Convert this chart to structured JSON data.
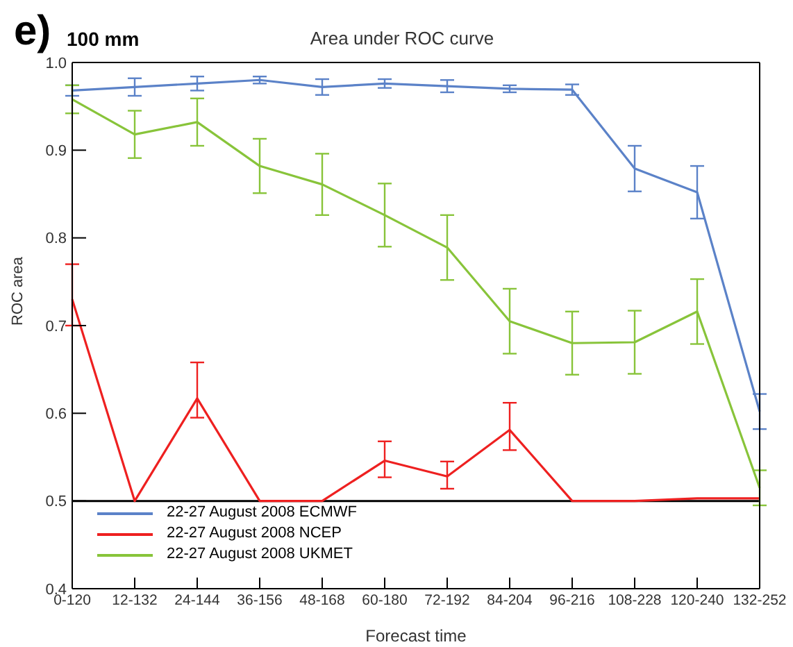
{
  "chart_data": {
    "type": "line",
    "title": "Area under ROC curve",
    "subtitle": "100 mm",
    "annotations": [
      "e)"
    ],
    "xlabel": "Forecast time",
    "ylabel": "ROC area",
    "categories": [
      "0-120",
      "12-132",
      "24-144",
      "36-156",
      "48-168",
      "60-180",
      "72-192",
      "84-204",
      "96-216",
      "108-228",
      "120-240",
      "132-252"
    ],
    "series": [
      {
        "name": "22-27 August 2008 ECMWF",
        "color": "#5b82c8",
        "values": [
          0.968,
          0.972,
          0.976,
          0.98,
          0.972,
          0.976,
          0.973,
          0.97,
          0.969,
          0.879,
          0.852,
          0.602
        ],
        "errors": [
          0.006,
          0.01,
          0.008,
          0.004,
          0.009,
          0.005,
          0.007,
          0.004,
          0.006,
          0.026,
          0.03,
          0.02
        ]
      },
      {
        "name": "22-27 August 2008 NCEP",
        "color": "#ee2020",
        "values": [
          0.73,
          0.5,
          0.617,
          0.5,
          0.5,
          0.546,
          0.528,
          0.581,
          0.5,
          0.5,
          0.503,
          0.503
        ],
        "errors": [
          [
            0.7,
            0.77
          ],
          null,
          [
            0.595,
            0.658
          ],
          null,
          null,
          [
            0.527,
            0.568
          ],
          [
            0.514,
            0.545
          ],
          [
            0.558,
            0.612
          ],
          null,
          null,
          null,
          null
        ]
      },
      {
        "name": "22-27 August 2008 UKMET",
        "color": "#88c43a",
        "values": [
          0.958,
          0.918,
          0.932,
          0.882,
          0.861,
          0.826,
          0.789,
          0.705,
          0.68,
          0.681,
          0.716,
          0.515
        ],
        "errors": [
          0.016,
          0.027,
          0.027,
          0.031,
          0.035,
          0.036,
          0.037,
          0.037,
          0.036,
          0.036,
          0.037,
          0.02
        ]
      }
    ],
    "ylim": [
      0.4,
      1.0
    ],
    "yticks": [
      {
        "value": 0.4,
        "label": "0.4"
      },
      0.5,
      0.6,
      0.7,
      0.8,
      0.9,
      {
        "value": 1.0,
        "label": "1.0"
      }
    ],
    "ref_lines": [
      {
        "axis": "y",
        "value": 0.5,
        "color": "#000000"
      }
    ],
    "grid": false,
    "legend": "bottom left",
    "marker": "none",
    "line_style": "solid"
  }
}
